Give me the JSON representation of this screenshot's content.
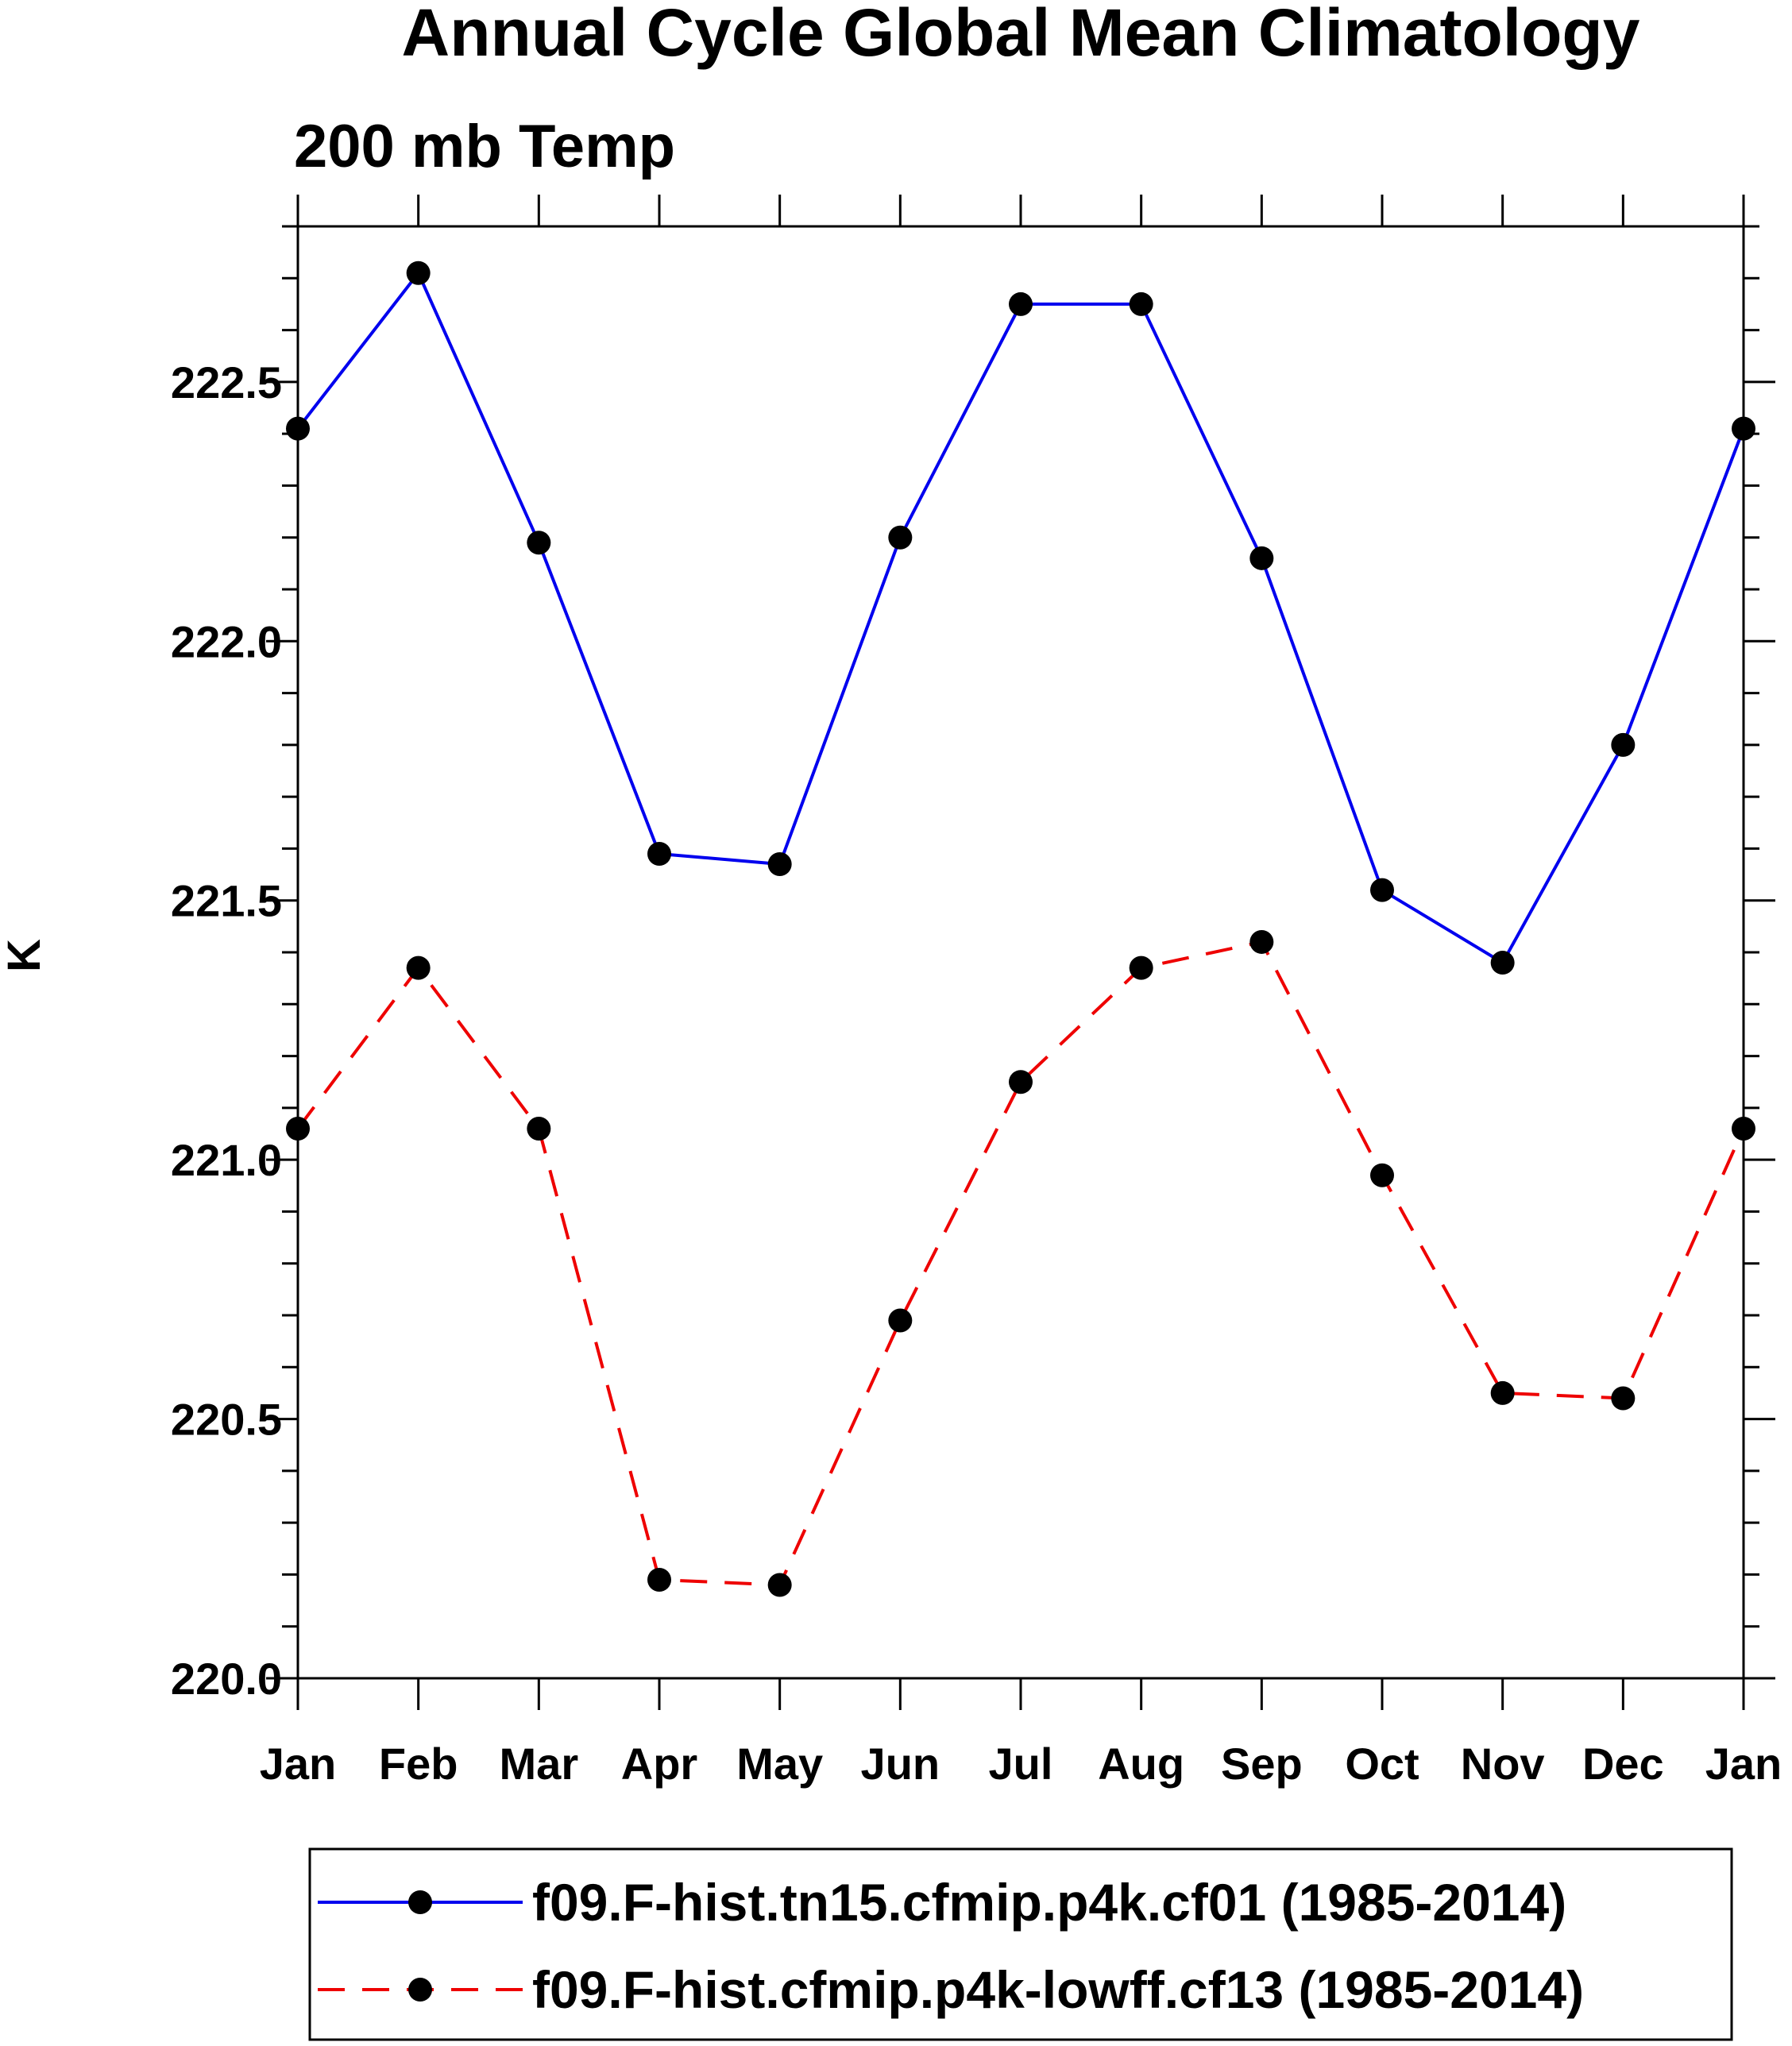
{
  "chart_data": {
    "type": "line",
    "title": "Annual Cycle Global Mean Climatology",
    "subtitle": "200 mb Temp",
    "xlabel": "",
    "ylabel": "K",
    "categories": [
      "Jan",
      "Feb",
      "Mar",
      "Apr",
      "May",
      "Jun",
      "Jul",
      "Aug",
      "Sep",
      "Oct",
      "Nov",
      "Dec",
      "Jan"
    ],
    "ylim": [
      220.0,
      222.8
    ],
    "yticks": [
      "220.0",
      "220.5",
      "221.0",
      "221.5",
      "222.0",
      "222.5"
    ],
    "legend_position": "bottom",
    "series": [
      {
        "name": "f09.F-hist.tn15.cfmip.p4k.cf01 (1985-2014)",
        "color": "#0000ee",
        "dash": "solid",
        "marker": "filled-circle",
        "values": [
          222.41,
          222.71,
          222.19,
          221.59,
          221.57,
          222.2,
          222.65,
          222.65,
          222.16,
          221.52,
          221.38,
          221.8,
          222.41
        ]
      },
      {
        "name": "f09.F-hist.cfmip.p4k-lowff.cf13 (1985-2014)",
        "color": "#ee0000",
        "dash": "dashed",
        "marker": "filled-circle",
        "values": [
          221.06,
          221.37,
          221.06,
          220.19,
          220.18,
          220.69,
          221.15,
          221.37,
          221.42,
          220.97,
          220.55,
          220.54,
          221.06
        ]
      }
    ]
  }
}
